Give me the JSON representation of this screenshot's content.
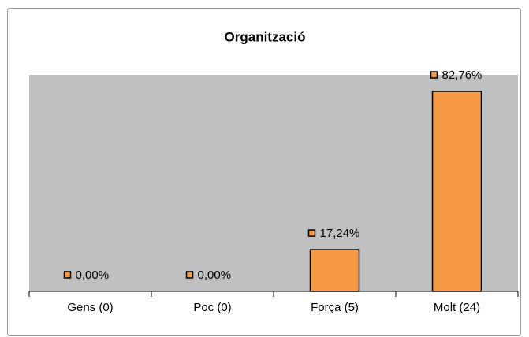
{
  "chart_data": {
    "type": "bar",
    "title": "Organització",
    "categories": [
      "Gens (0)",
      "Poc (0)",
      "Força (5)",
      "Molt (24)"
    ],
    "values": [
      0,
      0,
      17.24,
      82.76
    ],
    "value_labels": [
      "0,00%",
      "0,00%",
      "17,24%",
      "82,76%"
    ],
    "color": "#f79a45"
  }
}
